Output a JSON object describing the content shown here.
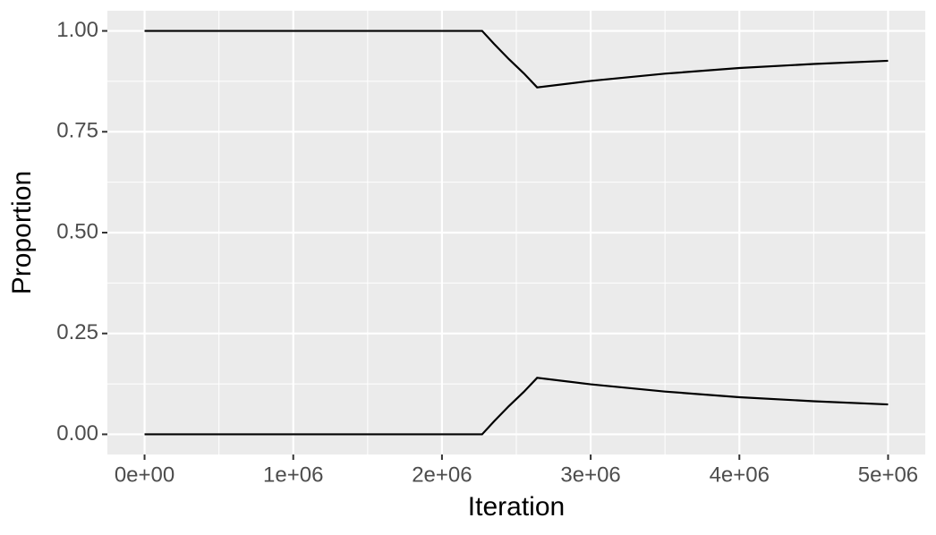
{
  "chart_data": {
    "type": "line",
    "x_label": "Iteration",
    "y_label": "Proportion",
    "x": [
      0,
      2270000,
      2350000,
      2450000,
      2550000,
      2640000,
      3000000,
      3500000,
      4000000,
      4500000,
      5000000
    ],
    "series": [
      {
        "color": "#000000",
        "values": [
          1,
          1,
          0.968,
          0.93,
          0.895,
          0.86,
          0.876,
          0.894,
          0.908,
          0.918,
          0.926
        ]
      },
      {
        "color": "#000000",
        "values": [
          0,
          0,
          0.032,
          0.07,
          0.105,
          0.14,
          0.124,
          0.106,
          0.092,
          0.082,
          0.074
        ]
      }
    ],
    "xlim": [
      -250000,
      5250000
    ],
    "xticks": [
      {
        "value": 0,
        "label": "0e+00"
      },
      {
        "value": 1000000,
        "label": "1e+06"
      },
      {
        "value": 2000000,
        "label": "2e+06"
      },
      {
        "value": 3000000,
        "label": "3e+06"
      },
      {
        "value": 4000000,
        "label": "4e+06"
      },
      {
        "value": 5000000,
        "label": "5e+06"
      }
    ],
    "ylim": [
      -0.05,
      1.05
    ],
    "yticks": [
      {
        "value": 0,
        "label": "0.00"
      },
      {
        "value": 0.25,
        "label": "0.25"
      },
      {
        "value": 0.5,
        "label": "0.50"
      },
      {
        "value": 0.75,
        "label": "0.75"
      },
      {
        "value": 1,
        "label": "1.00"
      }
    ],
    "grid": true
  }
}
